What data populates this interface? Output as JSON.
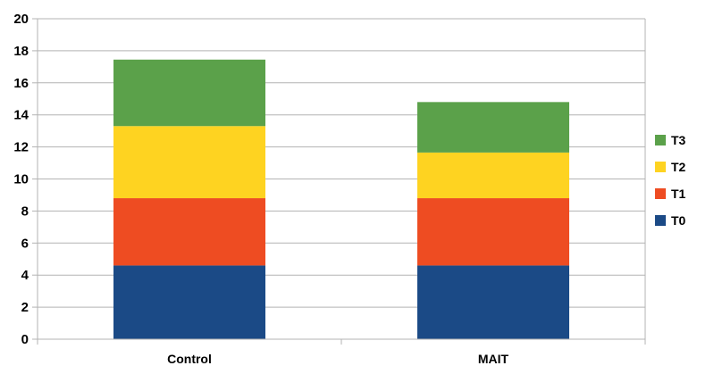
{
  "chart_data": {
    "type": "bar",
    "stacked": true,
    "categories": [
      "Control",
      "MAIT"
    ],
    "series": [
      {
        "name": "T0",
        "values": [
          4.6,
          4.6
        ],
        "color": "#1b4a86"
      },
      {
        "name": "T1",
        "values": [
          4.2,
          4.2
        ],
        "color": "#ee4c22"
      },
      {
        "name": "T2",
        "values": [
          4.5,
          2.85
        ],
        "color": "#fed321"
      },
      {
        "name": "T3",
        "values": [
          4.15,
          3.15
        ],
        "color": "#5ba14a"
      }
    ],
    "ylim": [
      0,
      20
    ],
    "yticks": [
      0,
      2,
      4,
      6,
      8,
      10,
      12,
      14,
      16,
      18,
      20
    ],
    "ytick_labels": [
      "0",
      "2",
      "4",
      "6",
      "8",
      "10",
      "12",
      "14",
      "16",
      "18",
      "20"
    ],
    "grid": true,
    "grid_color": "#b3b3b3",
    "legend_position": "right",
    "legend_order": [
      "T3",
      "T2",
      "T1",
      "T0"
    ],
    "title": "",
    "xlabel": "",
    "ylabel": ""
  }
}
